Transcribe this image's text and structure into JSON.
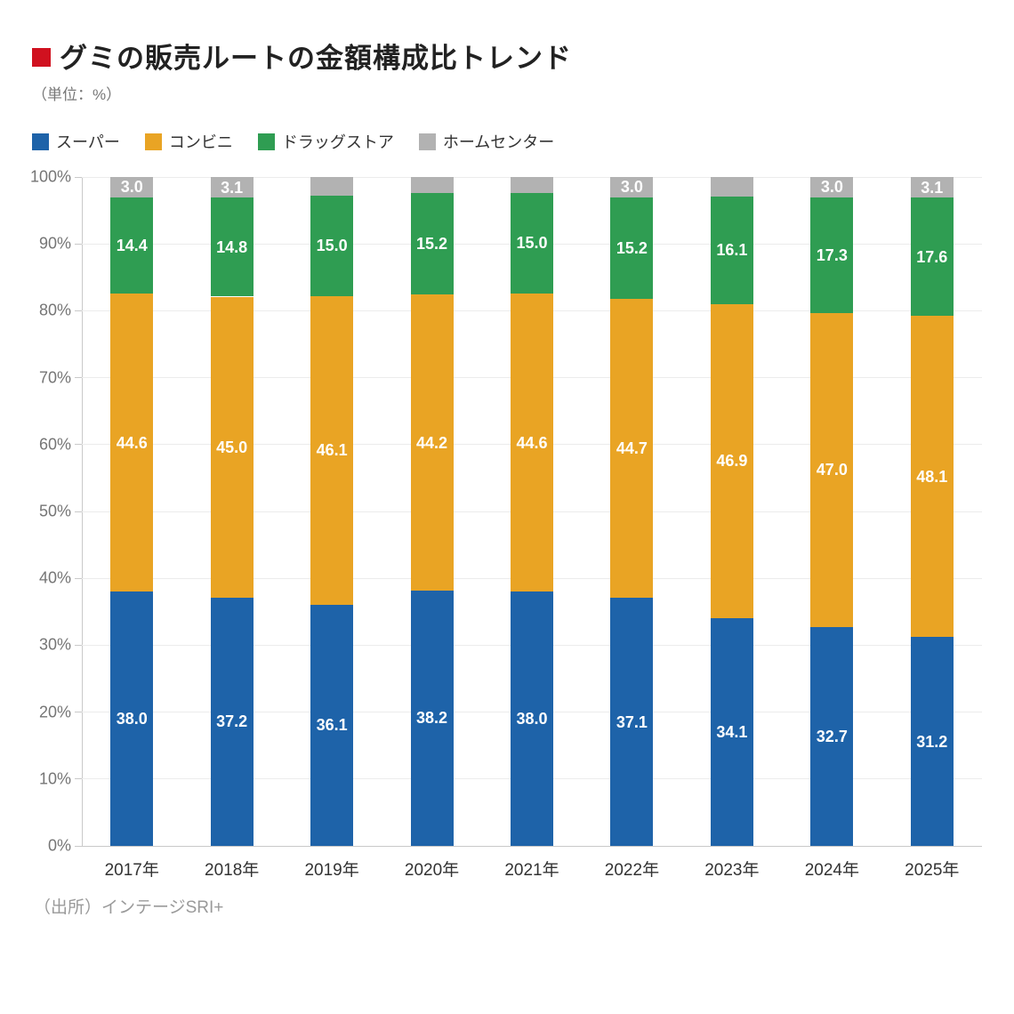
{
  "header": {
    "title": "グミの販売ルートの金額構成比トレンド",
    "subtitle": "（単位：%）",
    "marker_color": "#d0111f"
  },
  "source": "（出所）インテージSRI+",
  "palette": {
    "blue": "#1e63a9",
    "orange": "#e9a424",
    "green": "#2f9d52",
    "gray": "#b2b2b2",
    "grid": "#ececec",
    "axis": "#c9c9c9",
    "value_label": "#ffffff"
  },
  "chart_data": {
    "type": "bar",
    "stacked": true,
    "percent_stacked": true,
    "unit": "%",
    "title": "グミの販売ルートの金額構成比トレンド",
    "xlabel": "",
    "ylabel": "",
    "ylim": [
      0,
      100
    ],
    "y_tick_step": 10,
    "y_tick_labels": [
      "0%",
      "10%",
      "20%",
      "30%",
      "40%",
      "50%",
      "60%",
      "70%",
      "80%",
      "90%",
      "100%"
    ],
    "grid": true,
    "legend_position": "top",
    "categories": [
      "2017年",
      "2018年",
      "2019年",
      "2020年",
      "2021年",
      "2022年",
      "2023年",
      "2024年",
      "2025年"
    ],
    "series": [
      {
        "name": "スーパー",
        "color": "#1e63a9",
        "values": [
          38.0,
          37.2,
          36.1,
          38.2,
          38.0,
          37.1,
          34.1,
          32.7,
          31.2
        ],
        "labels": [
          "38.0",
          "37.2",
          "36.1",
          "38.2",
          "38.0",
          "37.1",
          "34.1",
          "32.7",
          "31.2"
        ]
      },
      {
        "name": "コンビニ",
        "color": "#e9a424",
        "values": [
          44.6,
          45.0,
          46.1,
          44.2,
          44.6,
          44.7,
          46.9,
          47.0,
          48.1
        ],
        "labels": [
          "44.6",
          "45.0",
          "46.1",
          "44.2",
          "44.6",
          "44.7",
          "46.9",
          "47.0",
          "48.1"
        ]
      },
      {
        "name": "ドラッグストア",
        "color": "#2f9d52",
        "values": [
          14.4,
          14.8,
          15.0,
          15.2,
          15.0,
          15.2,
          16.1,
          17.3,
          17.6
        ],
        "labels": [
          "14.4",
          "14.8",
          "15.0",
          "15.2",
          "15.0",
          "15.2",
          "16.1",
          "17.3",
          "17.6"
        ]
      },
      {
        "name": "ホームセンター",
        "color": "#b2b2b2",
        "values": [
          3.0,
          3.1,
          2.8,
          2.4,
          2.4,
          3.0,
          2.9,
          3.0,
          3.1
        ],
        "labels": [
          "3.0",
          "3.1",
          null,
          null,
          null,
          "3.0",
          null,
          "3.0",
          "3.1"
        ]
      }
    ]
  }
}
